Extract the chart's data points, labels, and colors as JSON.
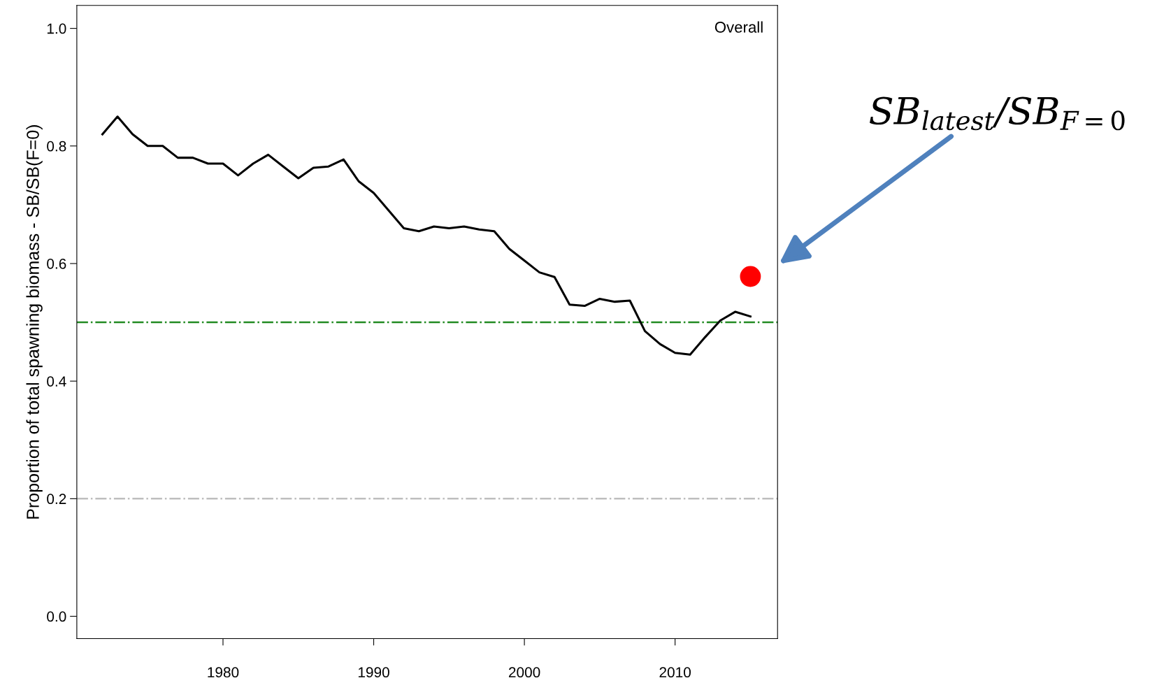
{
  "chart_data": {
    "type": "line",
    "ylabel": "Proportion of total spawning biomass - SB/SB(F=0)",
    "xlim": [
      1970.3,
      2016.8
    ],
    "ylim": [
      -0.038,
      1.039
    ],
    "xticks": [
      1980,
      1990,
      2000,
      2010
    ],
    "yticks": [
      {
        "value": 0,
        "label": "0.0"
      },
      {
        "value": 0.2,
        "label": "0.2"
      },
      {
        "value": 0.4,
        "label": "0.4"
      },
      {
        "value": 0.6,
        "label": "0.6"
      },
      {
        "value": 0.8,
        "label": "0.8"
      },
      {
        "value": 1.0,
        "label": "1.0"
      }
    ],
    "grid": false,
    "legend": false,
    "series": [
      {
        "color": "#000000",
        "marker": "none",
        "line_style": "solid",
        "x": [
          1972,
          1973,
          1974,
          1975,
          1976,
          1977,
          1978,
          1979,
          1980,
          1981,
          1982,
          1983,
          1984,
          1985,
          1986,
          1987,
          1988,
          1989,
          1990,
          1991,
          1992,
          1993,
          1994,
          1995,
          1996,
          1997,
          1998,
          1999,
          2000,
          2001,
          2002,
          2003,
          2004,
          2005,
          2006,
          2007,
          2008,
          2009,
          2010,
          2011,
          2012,
          2013,
          2014,
          2015
        ],
        "values": [
          0.82,
          0.85,
          0.82,
          0.8,
          0.8,
          0.78,
          0.78,
          0.77,
          0.77,
          0.75,
          0.77,
          0.785,
          0.765,
          0.745,
          0.763,
          0.765,
          0.777,
          0.74,
          0.72,
          0.69,
          0.66,
          0.655,
          0.663,
          0.66,
          0.663,
          0.658,
          0.655,
          0.625,
          0.605,
          0.585,
          0.577,
          0.53,
          0.528,
          0.54,
          0.535,
          0.537,
          0.485,
          0.463,
          0.448,
          0.445,
          0.475,
          0.503,
          0.518,
          0.51
        ]
      },
      {
        "type": "scatter",
        "color": "#ff0000",
        "marker": "circle",
        "x": [
          2015
        ],
        "values": [
          0.578
        ]
      }
    ],
    "ref_lines": [
      {
        "axis": "y",
        "value": 0.5,
        "color": "#228b22",
        "line_style": "dashdot"
      },
      {
        "axis": "y",
        "value": 0.2,
        "color": "#bebebe",
        "line_style": "dashdot"
      }
    ],
    "annotations": [
      "Overall",
      "SB$_{latest}$/SB$_{F=0}$"
    ]
  }
}
